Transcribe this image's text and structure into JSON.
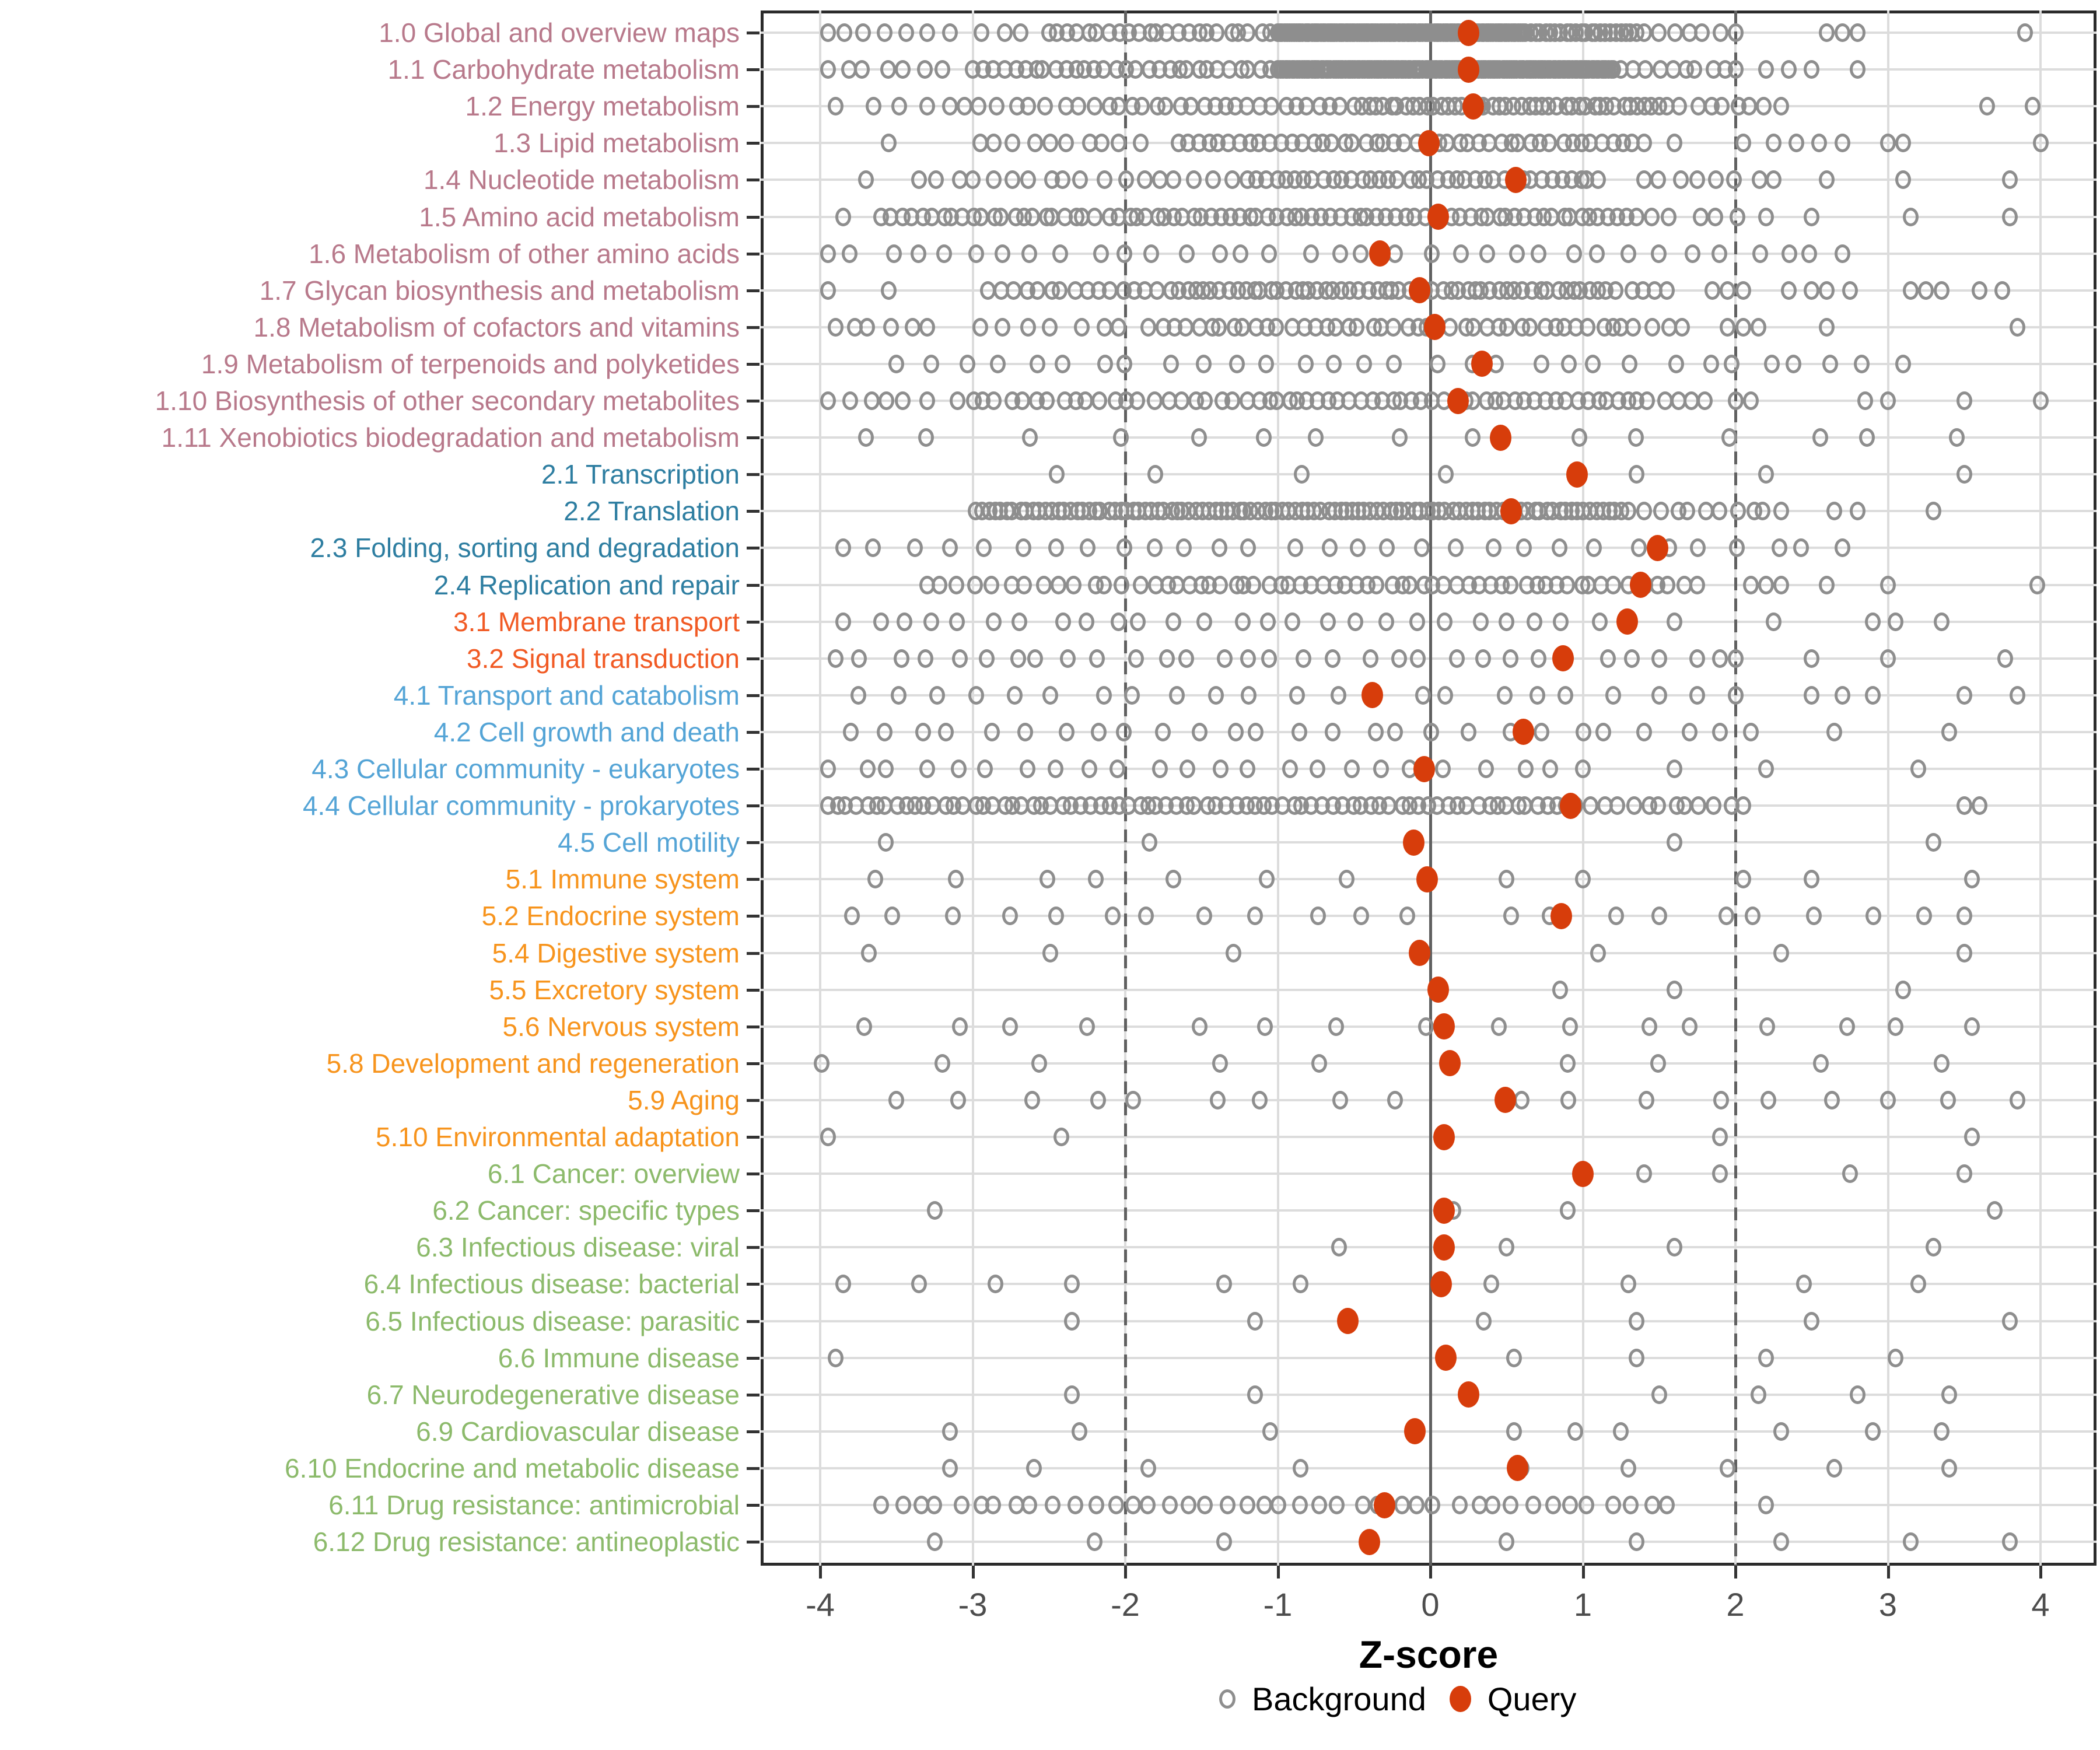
{
  "chart_data": {
    "type": "scatter",
    "title": "",
    "xlabel": "Z-score",
    "x_ticks": [
      -4,
      -3,
      -2,
      -1,
      0,
      1,
      2,
      3,
      4
    ],
    "xlim": [
      -4.4,
      4.4
    ],
    "grid": "on",
    "reference_lines": {
      "solid": [
        0
      ],
      "dashed": [
        -2,
        2
      ]
    },
    "legend_position": "bottom",
    "legend": [
      {
        "label": "Background",
        "marker": "open-circle",
        "color": "#8e8e8e"
      },
      {
        "label": "Query",
        "marker": "filled-circle",
        "color": "#d73d0b"
      }
    ],
    "group_colors": {
      "1": "#b8798b",
      "2": "#2e7ea1",
      "3": "#f15a24",
      "4": "#54a4d6",
      "5": "#f7941d",
      "6": "#8cba6b"
    },
    "point_colors": {
      "background": "#8e8e8e",
      "query": "#d73d0b"
    },
    "categories": [
      {
        "label": "1.0 Global and overview maps",
        "group": "1",
        "query": 0.25,
        "background": [
          [
            -3.95,
            -3.3,
            6
          ],
          [
            -3.15,
            -2.5,
            5
          ],
          [
            -2.45,
            -1.05,
            22
          ],
          [
            -1.0,
            0.62,
            110
          ],
          [
            0.66,
            1.35,
            22
          ],
          [
            1.4,
            2.0,
            7
          ],
          2.6,
          2.7,
          2.8,
          3.9
        ]
      },
      {
        "label": "1.1 Carbohydrate metabolism",
        "group": "1",
        "query": 0.25,
        "background": [
          [
            -3.95,
            -3.2,
            7
          ],
          [
            -3.0,
            -1.05,
            30
          ],
          [
            -1.0,
            1.2,
            140
          ],
          [
            1.25,
            2.0,
            10
          ],
          2.2,
          2.35,
          2.5,
          2.8
        ]
      },
      {
        "label": "1.2 Energy metabolism",
        "group": "1",
        "query": 0.28,
        "background": [
          [
            -3.9,
            -3.3,
            4
          ],
          [
            -3.15,
            -2.2,
            10
          ],
          [
            -2.1,
            -0.5,
            22
          ],
          [
            -0.45,
            1.5,
            42
          ],
          [
            1.55,
            2.3,
            9
          ],
          3.65,
          3.95
        ]
      },
      {
        "label": "1.3 Lipid metabolism",
        "group": "1",
        "query": -0.01,
        "background": [
          -3.55,
          [
            -2.95,
            -1.9,
            10
          ],
          [
            -1.65,
            1.4,
            46
          ],
          1.6,
          2.05,
          2.25,
          2.4,
          2.55,
          2.7,
          3.0,
          3.1,
          4.0
        ]
      },
      {
        "label": "1.4 Nucleotide metabolism",
        "group": "1",
        "query": 0.56,
        "background": [
          -3.7,
          [
            -3.35,
            -1.3,
            18
          ],
          [
            -1.2,
            1.1,
            38
          ],
          [
            1.4,
            2.25,
            8
          ],
          2.6,
          3.1,
          3.8
        ]
      },
      {
        "label": "1.5 Amino acid metabolism",
        "group": "1",
        "query": 0.05,
        "background": [
          -3.85,
          [
            -3.6,
            -2.2,
            22
          ],
          [
            -2.1,
            1.35,
            58
          ],
          [
            1.45,
            2.2,
            6
          ],
          2.5,
          3.15,
          3.8
        ]
      },
      {
        "label": "1.6 Metabolism of other amino acids",
        "group": "1",
        "query": -0.33,
        "background": [
          [
            -3.95,
            2.7,
            35
          ]
        ]
      },
      {
        "label": "1.7 Glycan biosynthesis and metabolism",
        "group": "1",
        "query": -0.07,
        "background": [
          -3.95,
          -3.55,
          [
            -2.9,
            -1.7,
            16
          ],
          [
            -1.65,
            1.1,
            52
          ],
          [
            1.15,
            1.55,
            6
          ],
          1.85,
          1.95,
          2.05,
          2.35,
          2.5,
          2.6,
          2.75,
          3.15,
          3.25,
          3.35,
          3.6,
          3.75
        ]
      },
      {
        "label": "1.8 Metabolism of cofactors and vitamins",
        "group": "1",
        "query": 0.03,
        "background": [
          [
            -3.9,
            -3.3,
            6
          ],
          [
            -2.95,
            -1.85,
            8
          ],
          [
            -1.75,
            1.2,
            40
          ],
          [
            1.25,
            1.65,
            5
          ],
          1.95,
          2.05,
          2.15,
          2.6,
          3.85
        ]
      },
      {
        "label": "1.9 Metabolism of terpenoids and polyketides",
        "group": "1",
        "query": 0.34,
        "background": [
          [
            -3.5,
            3.1,
            31
          ]
        ]
      },
      {
        "label": "1.10 Biosynthesis of other secondary metabolites",
        "group": "1",
        "query": 0.18,
        "background": [
          [
            -3.95,
            -3.3,
            6
          ],
          [
            -3.1,
            -1.3,
            22
          ],
          [
            -1.2,
            1.3,
            38
          ],
          [
            1.35,
            1.8,
            6
          ],
          2.0,
          2.1,
          2.85,
          3.0,
          3.5,
          4.0
        ]
      },
      {
        "label": "1.11 Xenobiotics biodegradation and metabolism",
        "group": "1",
        "query": 0.46,
        "background": [
          [
            -3.7,
            3.45,
            15
          ]
        ]
      },
      {
        "label": "2.1 Transcription",
        "group": "2",
        "query": 0.96,
        "background": [
          [
            -2.45,
            0.1,
            4
          ],
          1.35,
          2.2,
          3.5
        ]
      },
      {
        "label": "2.2 Translation",
        "group": "2",
        "query": 0.53,
        "background": [
          [
            -2.98,
            1.3,
            105
          ],
          [
            1.4,
            2.3,
            10
          ],
          2.65,
          2.8,
          3.3
        ]
      },
      {
        "label": "2.3 Folding, sorting and degradation",
        "group": "2",
        "query": 1.49,
        "background": [
          [
            -3.85,
            2.7,
            30
          ]
        ]
      },
      {
        "label": "2.4 Replication and repair",
        "group": "2",
        "query": 1.38,
        "background": [
          [
            -3.3,
            -1.9,
            14
          ],
          [
            -1.8,
            1.2,
            42
          ],
          [
            1.3,
            1.75,
            6
          ],
          2.1,
          2.2,
          2.3,
          2.6,
          3.0,
          3.98
        ]
      },
      {
        "label": "3.1 Membrane transport",
        "group": "3",
        "query": 1.29,
        "background": [
          [
            -3.85,
            1.3,
            27
          ],
          1.6,
          2.25,
          2.9,
          3.05,
          3.35
        ]
      },
      {
        "label": "3.2 Signal transduction",
        "group": "3",
        "query": 0.87,
        "background": [
          [
            -3.9,
            1.5,
            29
          ],
          1.75,
          1.9,
          2.0,
          2.5,
          3.0,
          3.77
        ]
      },
      {
        "label": "4.1 Transport and catabolism",
        "group": "4",
        "query": -0.38,
        "background": [
          [
            -3.75,
            1.2,
            20
          ],
          1.5,
          1.75,
          2.0,
          2.5,
          2.7,
          2.9,
          3.5,
          3.85
        ]
      },
      {
        "label": "4.2 Cell growth and death",
        "group": "4",
        "query": 0.61,
        "background": [
          [
            -3.8,
            1.4,
            24
          ],
          1.7,
          1.9,
          2.1,
          2.65,
          3.4
        ]
      },
      {
        "label": "4.3 Cellular community - eukaryotes",
        "group": "4",
        "query": -0.04,
        "background": [
          [
            -3.95,
            1.0,
            24
          ],
          1.6,
          2.2,
          3.2
        ]
      },
      {
        "label": "4.4 Cellular community - prokaryotes",
        "group": "4",
        "query": 0.92,
        "background": [
          [
            -3.95,
            0.95,
            78
          ],
          [
            1.05,
            2.05,
            12
          ],
          3.5,
          3.6
        ]
      },
      {
        "label": "4.5 Cell motility",
        "group": "4",
        "query": -0.11,
        "background": [
          -3.57,
          -1.84,
          1.6,
          3.3
        ]
      },
      {
        "label": "5.1 Immune system",
        "group": "5",
        "query": -0.02,
        "background": [
          [
            -3.64,
            -0.55,
            7
          ],
          0.5,
          1.0,
          2.05,
          2.5,
          3.55
        ]
      },
      {
        "label": "5.2 Endocrine system",
        "group": "5",
        "query": 0.86,
        "background": [
          [
            -3.79,
            -0.15,
            12
          ],
          [
            0.53,
            3.5,
            10
          ]
        ]
      },
      {
        "label": "5.4 Digestive system",
        "group": "5",
        "query": -0.07,
        "background": [
          -3.68,
          -2.49,
          -1.29,
          1.1,
          2.3,
          3.5
        ]
      },
      {
        "label": "5.5 Excretory system",
        "group": "5",
        "query": 0.05,
        "background": [
          0.85,
          1.6,
          3.1
        ]
      },
      {
        "label": "5.6 Nervous system",
        "group": "5",
        "query": 0.09,
        "background": [
          [
            -3.71,
            -0.03,
            8
          ],
          [
            0.45,
            3.55,
            8
          ]
        ]
      },
      {
        "label": "5.8 Development and regeneration",
        "group": "5",
        "query": 0.13,
        "background": [
          [
            -3.99,
            -0.73,
            5
          ],
          [
            0.9,
            3.35,
            4
          ]
        ]
      },
      {
        "label": "5.9 Aging",
        "group": "5",
        "query": 0.49,
        "background": [
          [
            -3.5,
            -0.23,
            9
          ],
          [
            0.6,
            3.85,
            9
          ]
        ]
      },
      {
        "label": "5.10 Environmental adaptation",
        "group": "5",
        "query": 0.09,
        "background": [
          -3.95,
          -2.42,
          1.9,
          3.55
        ]
      },
      {
        "label": "6.1 Cancer: overview",
        "group": "6",
        "query": 1.0,
        "background": [
          1.4,
          1.9,
          2.75,
          3.5
        ]
      },
      {
        "label": "6.2 Cancer: specific types",
        "group": "6",
        "query": 0.09,
        "background": [
          -3.25,
          0.15,
          0.9,
          3.7
        ]
      },
      {
        "label": "6.3 Infectious disease: viral",
        "group": "6",
        "query": 0.09,
        "background": [
          -0.6,
          0.5,
          1.6,
          3.3
        ]
      },
      {
        "label": "6.4 Infectious disease: bacterial",
        "group": "6",
        "query": 0.07,
        "background": [
          -3.85,
          -3.35,
          -2.85,
          -2.35,
          -1.35,
          -0.85,
          0.4,
          1.3,
          2.45,
          3.2
        ]
      },
      {
        "label": "6.5 Infectious disease: parasitic",
        "group": "6",
        "query": -0.54,
        "background": [
          -2.35,
          -1.15,
          0.35,
          1.35,
          2.5,
          3.8
        ]
      },
      {
        "label": "6.6 Immune disease",
        "group": "6",
        "query": 0.1,
        "background": [
          -3.9,
          0.55,
          1.35,
          2.2,
          3.05
        ]
      },
      {
        "label": "6.7 Neurodegenerative disease",
        "group": "6",
        "query": 0.25,
        "background": [
          -2.35,
          -1.15,
          1.5,
          2.15,
          2.8,
          3.4
        ]
      },
      {
        "label": "6.9 Cardiovascular disease",
        "group": "6",
        "query": -0.1,
        "background": [
          -3.15,
          -2.3,
          -1.05,
          0.55,
          0.95,
          1.25,
          2.3,
          2.9,
          3.35
        ]
      },
      {
        "label": "6.10 Endocrine and metabolic disease",
        "group": "6",
        "query": 0.57,
        "background": [
          -3.15,
          -2.6,
          -1.85,
          -0.85,
          0.6,
          1.3,
          1.95,
          2.65,
          3.4
        ]
      },
      {
        "label": "6.11 Drug resistance: antimicrobial",
        "group": "6",
        "query": -0.3,
        "background": [
          [
            -3.6,
            1.55,
            42
          ],
          2.2
        ]
      },
      {
        "label": "6.12 Drug resistance: antineoplastic",
        "group": "6",
        "query": -0.4,
        "background": [
          -3.25,
          -2.2,
          -1.35,
          0.5,
          1.35,
          2.3,
          3.15,
          3.8
        ]
      }
    ]
  }
}
